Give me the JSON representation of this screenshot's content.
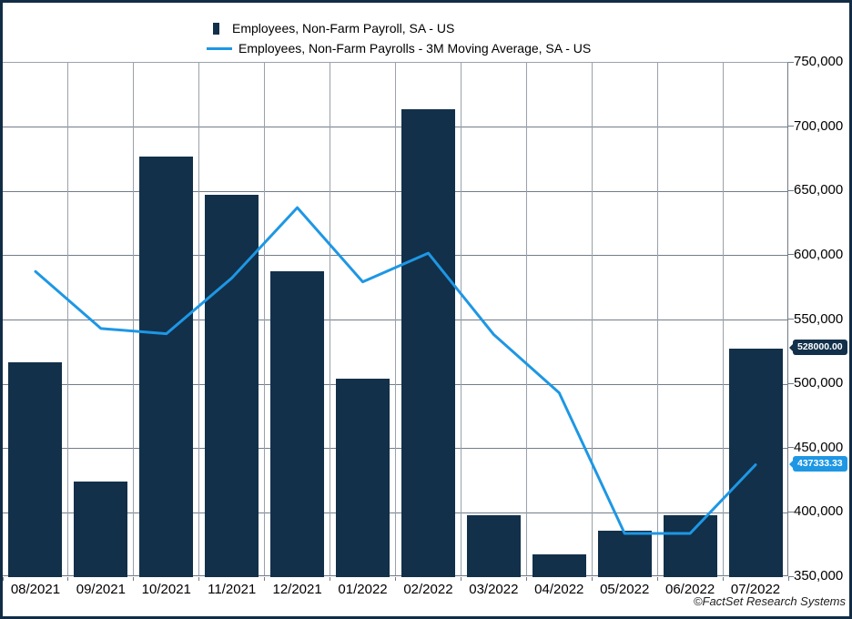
{
  "legend": {
    "items": [
      {
        "label": "Employees, Non-Farm Payroll, SA - US",
        "swatch": "bar",
        "color": "#12304a"
      },
      {
        "label": "Employees, Non-Farm Payrolls - 3M Moving Average, SA - US",
        "swatch": "line",
        "color": "#1e97e4"
      }
    ]
  },
  "footer": {
    "credit": "©FactSet Research Systems"
  },
  "chart_data": {
    "type": "bar",
    "categories": [
      "08/2021",
      "09/2021",
      "10/2021",
      "11/2021",
      "12/2021",
      "01/2022",
      "02/2022",
      "03/2022",
      "04/2022",
      "05/2022",
      "06/2022",
      "07/2022"
    ],
    "series": [
      {
        "name": "Employees, Non-Farm Payroll, SA - US",
        "type": "bar",
        "color": "#12304a",
        "values": [
          517000,
          424000,
          677000,
          647000,
          588000,
          504000,
          714000,
          398000,
          368000,
          386000,
          398000,
          528000
        ]
      },
      {
        "name": "Employees, Non-Farm Payrolls - 3M Moving Average, SA - US",
        "type": "line",
        "color": "#1e97e4",
        "values": [
          587666.67,
          543333.33,
          539333.33,
          582666.67,
          637333.33,
          579666.67,
          602000,
          538666.67,
          493333.33,
          384000,
          384000,
          437333.33
        ]
      }
    ],
    "ylim": [
      350000,
      750000
    ],
    "ytick_interval": 50000,
    "grid": true,
    "legend_position": "top-left",
    "axis_label_side": "right",
    "end_labels": [
      {
        "text": "528000.00",
        "value": 528000,
        "color": "#12304a"
      },
      {
        "text": "437333.33",
        "value": 437333.33,
        "color": "#1e97e4"
      }
    ]
  }
}
